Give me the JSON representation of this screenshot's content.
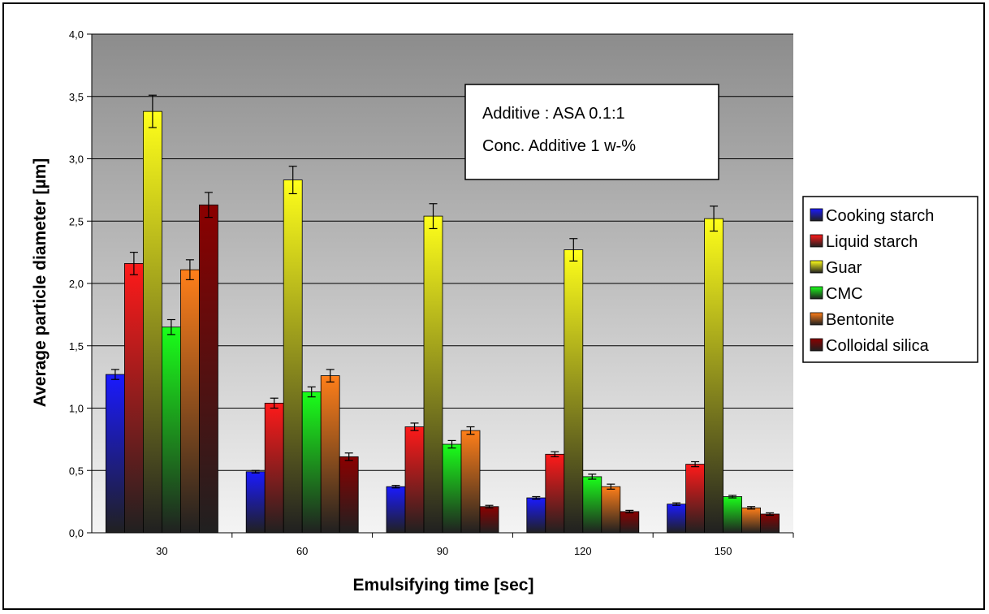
{
  "chart_data": {
    "type": "bar",
    "xlabel": "Emulsifying time [sec]",
    "ylabel": "Average particle diameter [µm]",
    "categories": [
      "30",
      "60",
      "90",
      "120",
      "150"
    ],
    "ylim": [
      0,
      4.0
    ],
    "yticks": [
      "0,0",
      "0,5",
      "1,0",
      "1,5",
      "2,0",
      "2,5",
      "3,0",
      "3,5",
      "4,0"
    ],
    "grid": true,
    "legend_position": "right",
    "annotation": [
      "Additive : ASA 0.1:1",
      "Conc. Additive 1 w-%"
    ],
    "series": [
      {
        "name": "Cooking starch",
        "color": "#1a1aff",
        "values": [
          1.27,
          0.49,
          0.37,
          0.28,
          0.23
        ],
        "errors": [
          0.04,
          0.01,
          0.01,
          0.01,
          0.01
        ]
      },
      {
        "name": "Liquid starch",
        "color": "#ff1a1a",
        "values": [
          2.16,
          1.04,
          0.85,
          0.63,
          0.55
        ],
        "errors": [
          0.09,
          0.04,
          0.03,
          0.02,
          0.02
        ]
      },
      {
        "name": "Guar",
        "color": "#ffff1a",
        "values": [
          3.38,
          2.83,
          2.54,
          2.27,
          2.52
        ],
        "errors": [
          0.13,
          0.11,
          0.1,
          0.09,
          0.1
        ]
      },
      {
        "name": "CMC",
        "color": "#1aff1a",
        "values": [
          1.65,
          1.13,
          0.71,
          0.45,
          0.29
        ],
        "errors": [
          0.06,
          0.04,
          0.03,
          0.02,
          0.01
        ]
      },
      {
        "name": "Bentonite",
        "color": "#ff7f1a",
        "values": [
          2.11,
          1.26,
          0.82,
          0.37,
          0.2
        ],
        "errors": [
          0.08,
          0.05,
          0.03,
          0.02,
          0.01
        ]
      },
      {
        "name": "Colloidal silica",
        "color": "#8b0000",
        "values": [
          2.63,
          0.61,
          0.21,
          0.17,
          0.15
        ],
        "errors": [
          0.1,
          0.03,
          0.01,
          0.01,
          0.01
        ]
      }
    ]
  }
}
